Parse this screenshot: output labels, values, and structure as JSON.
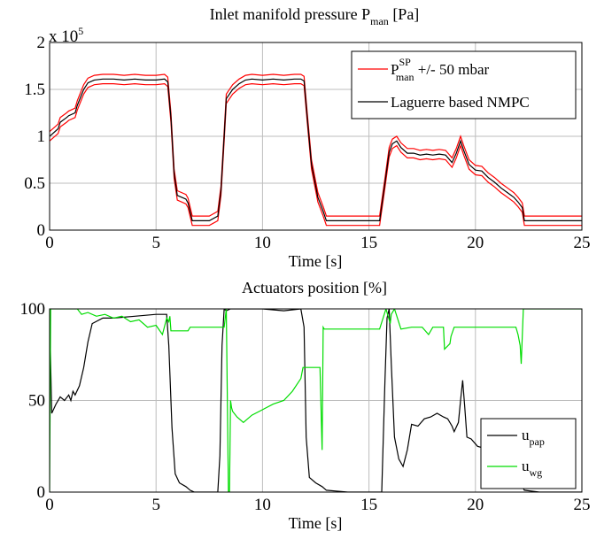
{
  "chart_data": [
    {
      "type": "line",
      "title": "Inlet manifold pressure P",
      "title_sub": "man",
      "title_unit": " [Pa]",
      "xlabel": "Time [s]",
      "ylabel": "",
      "xlim": [
        0,
        25
      ],
      "ylim": [
        0,
        200000
      ],
      "xticks": [
        0,
        5,
        10,
        15,
        20,
        25
      ],
      "yticks": [
        0,
        0.5,
        1,
        1.5,
        2
      ],
      "exponent_label": "x 10",
      "exponent_power": "5",
      "grid": true,
      "legend_placement": "top-right",
      "band_mbar": 50,
      "series": [
        {
          "name": "P",
          "name_sup": "SP",
          "name_sub": "man",
          "name_suffix": " +/- 50 mbar",
          "color": "#ff0000",
          "band": 5000,
          "x": [
            0,
            0.1,
            0.4,
            0.5,
            0.8,
            0.9,
            1.2,
            1.3,
            1.6,
            1.8,
            2.1,
            2.5,
            3.0,
            3.5,
            4.0,
            4.5,
            5.0,
            5.4,
            5.55,
            5.7,
            5.85,
            6.0,
            6.4,
            6.5,
            6.7,
            7.0,
            7.5,
            7.9,
            8.05,
            8.2,
            8.3,
            8.6,
            8.9,
            9.2,
            9.5,
            10.0,
            10.5,
            11.0,
            11.5,
            11.8,
            11.95,
            12.1,
            12.3,
            12.6,
            12.85,
            13.0,
            14.0,
            15.0,
            15.5,
            15.75,
            15.95,
            16.1,
            16.3,
            16.5,
            16.8,
            17.1,
            17.4,
            17.7,
            18.0,
            18.3,
            18.6,
            18.9,
            19.1,
            19.3,
            19.45,
            19.7,
            20.0,
            20.3,
            20.6,
            20.9,
            21.2,
            21.5,
            21.8,
            22.0,
            22.2,
            22.3,
            23.0,
            24.0,
            25.0
          ],
          "values": [
            100000,
            102000,
            108000,
            115000,
            120000,
            122000,
            125000,
            133000,
            150000,
            157000,
            160000,
            161000,
            161000,
            160000,
            161000,
            160000,
            160000,
            161000,
            158000,
            120000,
            60000,
            37000,
            33000,
            29000,
            10000,
            10000,
            10000,
            15000,
            42000,
            100000,
            140000,
            150000,
            156000,
            160000,
            161000,
            160000,
            161000,
            160000,
            161000,
            161000,
            159000,
            120000,
            70000,
            35000,
            20000,
            10000,
            10000,
            10000,
            10000,
            50000,
            83000,
            92000,
            95000,
            88000,
            82000,
            82000,
            80000,
            81000,
            80000,
            81000,
            80000,
            72000,
            82000,
            95000,
            85000,
            70000,
            64000,
            63000,
            56000,
            51000,
            45000,
            40000,
            35000,
            30000,
            24000,
            10000,
            10000,
            10000,
            10000
          ]
        },
        {
          "name": "Laguerre based NMPC",
          "color": "#000000",
          "x": [
            0,
            0.1,
            0.4,
            0.5,
            0.8,
            0.9,
            1.2,
            1.3,
            1.6,
            1.8,
            2.1,
            2.5,
            3.0,
            3.5,
            4.0,
            4.5,
            5.0,
            5.4,
            5.55,
            5.7,
            5.85,
            6.0,
            6.4,
            6.5,
            6.7,
            7.0,
            7.5,
            7.9,
            8.05,
            8.2,
            8.3,
            8.6,
            8.9,
            9.2,
            9.5,
            10.0,
            10.5,
            11.0,
            11.5,
            11.8,
            11.95,
            12.1,
            12.3,
            12.6,
            12.85,
            13.0,
            14.0,
            15.0,
            15.5,
            15.75,
            15.95,
            16.1,
            16.3,
            16.5,
            16.8,
            17.1,
            17.4,
            17.7,
            18.0,
            18.3,
            18.6,
            18.9,
            19.1,
            19.3,
            19.45,
            19.7,
            20.0,
            20.3,
            20.6,
            20.9,
            21.2,
            21.5,
            21.8,
            22.0,
            22.2,
            22.3,
            23.0,
            24.0,
            25.0
          ],
          "values": [
            100000,
            102000,
            108000,
            115000,
            120000,
            122000,
            125000,
            133000,
            150000,
            157000,
            160000,
            161000,
            161000,
            160000,
            161000,
            160000,
            160000,
            161000,
            158000,
            120000,
            60000,
            37000,
            33000,
            29000,
            10000,
            10000,
            10000,
            15000,
            42000,
            100000,
            140000,
            150000,
            156000,
            160000,
            161000,
            160000,
            161000,
            160000,
            161000,
            161000,
            159000,
            120000,
            70000,
            35000,
            20000,
            10000,
            10000,
            10000,
            10000,
            50000,
            83000,
            92000,
            95000,
            88000,
            82000,
            82000,
            80000,
            81000,
            80000,
            81000,
            80000,
            72000,
            82000,
            95000,
            85000,
            70000,
            64000,
            63000,
            56000,
            51000,
            45000,
            40000,
            35000,
            30000,
            24000,
            10000,
            10000,
            10000,
            10000
          ]
        }
      ]
    },
    {
      "type": "line",
      "title": "Actuators position [%]",
      "xlabel": "Time [s]",
      "ylabel": "",
      "xlim": [
        0,
        25
      ],
      "ylim": [
        0,
        100
      ],
      "xticks": [
        0,
        5,
        10,
        15,
        20,
        25
      ],
      "yticks": [
        0,
        50,
        100
      ],
      "grid": true,
      "legend_placement": "bottom-right",
      "series": [
        {
          "name": "u",
          "name_sub": "pap",
          "color": "#000000",
          "x": [
            0,
            0.05,
            0.1,
            0.3,
            0.5,
            0.7,
            0.9,
            1.0,
            1.1,
            1.2,
            1.4,
            1.6,
            1.8,
            2.0,
            2.5,
            3.0,
            4.0,
            5.0,
            5.5,
            5.6,
            5.75,
            5.9,
            6.1,
            6.4,
            6.6,
            6.8,
            7.0,
            7.5,
            7.9,
            8.0,
            8.1,
            8.2,
            8.3,
            8.5,
            9.0,
            10.0,
            11.0,
            11.8,
            11.95,
            12.05,
            12.2,
            12.5,
            12.8,
            13.0,
            14.0,
            15.0,
            15.6,
            15.75,
            15.85,
            15.95,
            16.05,
            16.2,
            16.4,
            16.6,
            16.8,
            17.0,
            17.3,
            17.6,
            17.9,
            18.2,
            18.5,
            18.7,
            18.9,
            19.0,
            19.2,
            19.3,
            19.4,
            19.5,
            19.6,
            19.8,
            20.1,
            20.4,
            20.7,
            21.0,
            21.3,
            21.6,
            21.9,
            22.1,
            22.3,
            23.0,
            24.0,
            25.0
          ],
          "values": [
            100,
            70,
            43,
            48,
            52,
            50,
            53,
            50,
            55,
            53,
            58,
            68,
            82,
            92,
            95,
            95,
            96,
            97,
            97,
            80,
            35,
            10,
            5,
            3,
            1,
            0,
            0,
            0,
            0,
            20,
            80,
            100,
            99,
            100,
            100,
            100,
            99,
            100,
            90,
            30,
            8,
            5,
            3,
            1,
            0,
            0,
            0,
            60,
            95,
            100,
            70,
            30,
            18,
            14,
            23,
            37,
            36,
            40,
            41,
            43,
            41,
            40,
            36,
            33,
            38,
            50,
            61,
            46,
            30,
            29,
            25,
            24,
            22,
            20,
            17,
            14,
            10,
            5,
            1,
            0,
            0,
            0
          ]
        },
        {
          "name": "u",
          "name_sub": "wg",
          "color": "#00dd00",
          "x": [
            0,
            0.05,
            0.15,
            0.3,
            1.0,
            1.3,
            1.5,
            1.8,
            2.2,
            2.6,
            3.0,
            3.4,
            3.8,
            4.2,
            4.6,
            5.0,
            5.3,
            5.5,
            5.6,
            5.65,
            5.7,
            6.0,
            6.5,
            6.6,
            8.0,
            8.2,
            8.3,
            8.4,
            8.45,
            8.5,
            8.55,
            8.6,
            8.8,
            9.1,
            9.5,
            10.0,
            10.5,
            11.0,
            11.4,
            11.8,
            11.9,
            12.0,
            12.3,
            12.7,
            12.8,
            12.85,
            12.9,
            13.0,
            15.5,
            15.8,
            16.0,
            16.05,
            16.2,
            16.5,
            17.0,
            17.5,
            17.8,
            18.0,
            18.5,
            18.55,
            18.8,
            18.85,
            19.0,
            19.5,
            20.0,
            21.0,
            21.9,
            22.0,
            22.1,
            22.15,
            22.2,
            22.25,
            22.35,
            23.0,
            25.0
          ],
          "values": [
            0,
            100,
            100,
            100,
            100,
            100,
            97,
            98,
            96,
            97,
            95,
            96,
            93,
            94,
            90,
            91,
            86,
            95,
            93,
            96,
            88,
            88,
            88,
            90,
            90,
            90,
            100,
            0,
            0,
            50,
            46,
            44,
            41,
            38,
            42,
            45,
            48,
            50,
            55,
            62,
            68,
            68,
            68,
            68,
            23,
            90,
            89,
            89,
            89,
            100,
            92,
            97,
            100,
            89,
            90,
            90,
            86,
            90,
            90,
            78,
            81,
            85,
            90,
            90,
            90,
            90,
            90,
            86,
            80,
            70,
            85,
            100,
            100,
            100,
            100
          ]
        }
      ]
    }
  ]
}
